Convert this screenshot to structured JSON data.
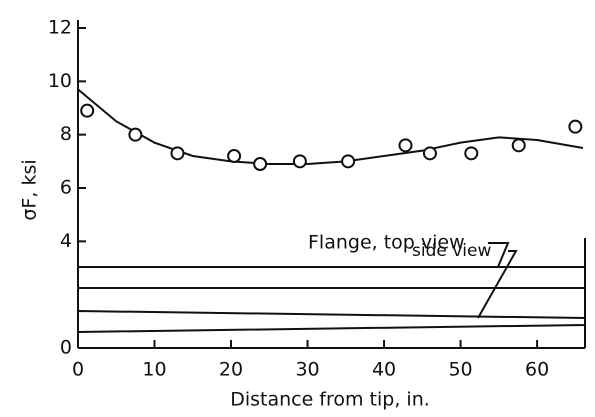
{
  "chart_data": {
    "type": "scatter",
    "x_label": "Distance from tip, in.",
    "y_label": "σF, ksi",
    "annotations": [
      "Flange, top view",
      "side view"
    ],
    "x": [
      1.2,
      7.5,
      13,
      20.4,
      23.8,
      29,
      35.3,
      42.8,
      46,
      51.4,
      57.6,
      65
    ],
    "values": [
      8.9,
      8.0,
      7.3,
      7.2,
      6.9,
      7.0,
      7.0,
      7.6,
      7.3,
      7.3,
      7.6,
      8.3
    ],
    "fit": {
      "x": [
        0,
        5,
        10,
        15,
        20,
        25,
        30,
        35,
        40,
        45,
        50,
        55,
        60,
        66
      ],
      "values": [
        9.7,
        8.5,
        7.7,
        7.2,
        7.0,
        6.9,
        6.9,
        7.0,
        7.2,
        7.4,
        7.7,
        7.9,
        7.8,
        7.5
      ]
    },
    "xlim": [
      0,
      66
    ],
    "xticks": [
      0,
      10,
      20,
      30,
      40,
      50,
      60
    ],
    "ylim": [
      0,
      12
    ],
    "yticks": [
      0,
      4,
      6,
      8,
      10,
      12
    ]
  }
}
